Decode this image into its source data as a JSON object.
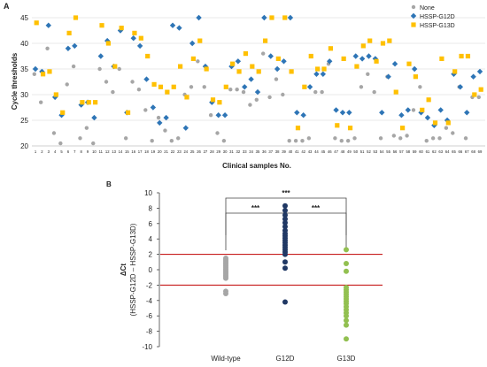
{
  "chart_data": [
    {
      "type": "scatter",
      "panel_label": "A",
      "xlabel": "Clinical samples No.",
      "ylabel": "Cycle thresholds",
      "ylim": [
        20,
        45
      ],
      "yticks": [
        20,
        25,
        30,
        35,
        40,
        45
      ],
      "xticks": [
        "1",
        "2",
        "3",
        "4",
        "5",
        "6",
        "7",
        "8",
        "9",
        "10",
        "11",
        "12",
        "13",
        "14",
        "15",
        "16",
        "17",
        "18",
        "19",
        "20",
        "21",
        "22",
        "23",
        "24",
        "25",
        "26",
        "27",
        "28",
        "29",
        "30",
        "31",
        "32",
        "33",
        "34",
        "35",
        "36",
        "37",
        "38",
        "39",
        "40",
        "41",
        "42",
        "43",
        "44",
        "45",
        "46",
        "47",
        "48",
        "49",
        "50",
        "51",
        "52",
        "53",
        "54",
        "55",
        "56",
        "57",
        "58",
        "59",
        "60",
        "61",
        "62",
        "63",
        "64",
        "65",
        "66",
        "67",
        "68",
        "69"
      ],
      "legend_position": "top-right",
      "series": [
        {
          "name": "None",
          "color": "#a6a6a6",
          "marker": "circle",
          "values": [
            34,
            28.5,
            39,
            22.5,
            20.5,
            32,
            35.5,
            21.5,
            23.5,
            20.5,
            35,
            32.5,
            30.5,
            35,
            21.5,
            32.5,
            31,
            27,
            21,
            25.5,
            23,
            21,
            21.5,
            30,
            31.5,
            36.5,
            31.5,
            26,
            22.5,
            21,
            31,
            31,
            30.5,
            28,
            29,
            38,
            29.5,
            33,
            30,
            21,
            21,
            21,
            21.5,
            30.5,
            30.5,
            36,
            21.5,
            21,
            21,
            21.5,
            31.5,
            34,
            30.5,
            21.5,
            33.5,
            22,
            21.5,
            22,
            27,
            31.5,
            21,
            21.5,
            21.5,
            23.5,
            22.5,
            31.5,
            21.5,
            29.5,
            29.5
          ]
        },
        {
          "name": "HSSP-G12D",
          "color": "#2e75b6",
          "marker": "diamond",
          "values": [
            35,
            34.5,
            43.5,
            29.5,
            26,
            39,
            39.5,
            28,
            28.5,
            25.5,
            37.5,
            40.5,
            35.5,
            42.5,
            26.5,
            41,
            39.5,
            33,
            27.5,
            24.5,
            25.5,
            43.5,
            43,
            23.5,
            40,
            45,
            35.5,
            28.5,
            26,
            26,
            35.5,
            36.5,
            31.5,
            33,
            30.5,
            45,
            37.5,
            35,
            36.5,
            45,
            26.5,
            26,
            31.5,
            34,
            34,
            36.5,
            27,
            26.5,
            26.5,
            37.5,
            37,
            37.5,
            37,
            26.5,
            33.5,
            36,
            26,
            27,
            35,
            26.5,
            25.5,
            24,
            27,
            25,
            34,
            31.5,
            26.5,
            33.5,
            34.5
          ]
        },
        {
          "name": "HSSP-G13D",
          "color": "#ffc000",
          "marker": "square",
          "values": [
            44,
            34,
            34.5,
            30,
            26.5,
            42,
            45,
            28.5,
            28.5,
            28.5,
            43.5,
            40,
            35.5,
            43,
            26.5,
            42,
            41,
            37.5,
            32,
            31.5,
            30.5,
            31.5,
            35.5,
            29.5,
            37,
            40.5,
            35,
            29,
            28.5,
            31.5,
            36,
            34.5,
            38,
            35.5,
            34.5,
            40.5,
            45,
            37,
            45,
            34.5,
            23.5,
            31.5,
            37.5,
            35,
            35,
            39,
            24,
            37,
            23.5,
            35.5,
            39.5,
            40.5,
            36.5,
            40,
            40.5,
            30.5,
            23.5,
            36,
            33.5,
            27,
            29,
            24.5,
            37,
            24.5,
            34.5,
            37.5,
            37.5,
            30,
            31
          ]
        }
      ]
    },
    {
      "type": "scatter",
      "panel_label": "B",
      "ylabel_line1": "ΔCt",
      "ylabel_line2": "(HSSP-G12D – HSSP-G13D)",
      "ylim": [
        -10,
        10
      ],
      "yticks": [
        -10,
        -8,
        -6,
        -4,
        -2,
        0,
        2,
        4,
        6,
        8,
        10
      ],
      "categories": [
        "Wild-type",
        "G12D",
        "G13D"
      ],
      "threshold_lines": [
        2,
        -2
      ],
      "threshold_color": "#c00000",
      "significance": [
        {
          "from": "Wild-type",
          "to": "G12D",
          "label": "***"
        },
        {
          "from": "G12D",
          "to": "G13D",
          "label": "***"
        },
        {
          "from": "Wild-type",
          "to": "G13D",
          "label": "***"
        }
      ],
      "series": [
        {
          "name": "Wild-type",
          "color": "#a6a6a6",
          "values": [
            1.5,
            1.3,
            1.1,
            0.9,
            0.7,
            0.5,
            0.3,
            0.1,
            -0.1,
            -0.3,
            -0.5,
            -0.7,
            -0.9,
            -1.1,
            -2.8,
            -3.1
          ]
        },
        {
          "name": "G12D",
          "color": "#203864",
          "values": [
            8.3,
            7.7,
            7.1,
            6.6,
            6.1,
            5.6,
            5.1,
            4.7,
            4.4,
            4.1,
            3.8,
            3.5,
            3.2,
            2.9,
            2.6,
            2.3,
            2.0,
            1.0,
            0.2,
            -4.2
          ]
        },
        {
          "name": "G13D",
          "color": "#92c050",
          "values": [
            2.6,
            0.8,
            -0.2,
            -2.3,
            -2.6,
            -2.9,
            -3.2,
            -3.5,
            -3.8,
            -4.1,
            -4.4,
            -4.8,
            -5.2,
            -5.6,
            -6.0,
            -6.6,
            -7.2,
            -9.0
          ]
        }
      ]
    }
  ]
}
